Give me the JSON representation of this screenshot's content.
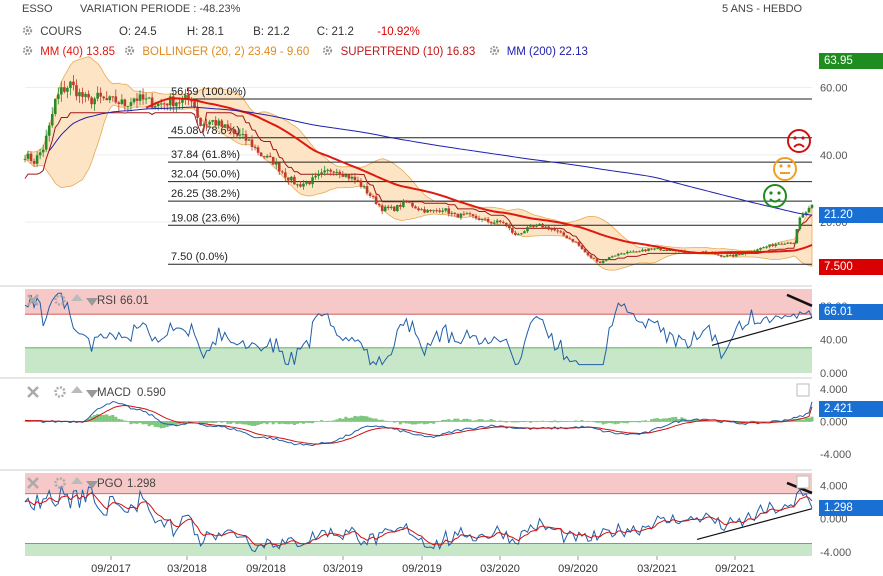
{
  "header": {
    "symbol": "ESSO",
    "variation": "VARIATION PERIODE : -48.23%",
    "period": "5 ANS - HEBDO"
  },
  "legend": {
    "cours_label": "COURS",
    "open": "O: 24.5",
    "high": "H: 28.1",
    "low": "B: 21.2",
    "close": "C: 21.2",
    "change": "-10.92%",
    "mm40": "MM (40) 13.85",
    "bollinger": "BOLLINGER (20, 2) 23.49 - 9.60",
    "supertrend": "SUPERTREND (10) 16.83",
    "mm200": "MM (200) 22.13"
  },
  "colors": {
    "candle_up": "#2a8a2a",
    "candle_down": "#c0392b",
    "mm40": "#e0190e",
    "bollinger": "#e8a040",
    "supertrend": "#a01818",
    "mm200": "#2020b0",
    "rsi": "#1f5fa8",
    "macd": "#1f5fa8",
    "signal": "#d01010",
    "hist": "#5cb85c",
    "overbought": "#f6c8c8",
    "oversold": "#c8e6c8",
    "tag_blue": "#1a6fd2",
    "tag_red": "#d80000",
    "tag_green": "#1f8c1f"
  },
  "price_tags": {
    "top": "63.95",
    "last": "21.20",
    "bottom": "7.500"
  },
  "fibonacci": [
    {
      "label": "56.59  (100.0%)",
      "value": 56.59
    },
    {
      "label": "45.08  (78.6%)",
      "value": 45.08
    },
    {
      "label": "37.84  (61.8%)",
      "value": 37.84
    },
    {
      "label": "32.04  (50.0%)",
      "value": 32.04
    },
    {
      "label": "26.25  (38.2%)",
      "value": 26.25
    },
    {
      "label": "19.08  (23.6%)",
      "value": 19.08
    },
    {
      "label": "7.50  (0.0%)",
      "value": 7.5
    }
  ],
  "indicators": {
    "rsi": {
      "label": "RSI",
      "value": "66.01",
      "tag": "66.01"
    },
    "macd": {
      "label": "MACD",
      "value": "0.590",
      "tag": "2.421"
    },
    "pgo": {
      "label": "PGO",
      "value": "1.298",
      "tag": "1.298"
    }
  },
  "chart_data": {
    "type": "candlestick",
    "x_ticks": [
      "09/2017",
      "03/2018",
      "09/2018",
      "03/2019",
      "09/2019",
      "03/2020",
      "09/2020",
      "03/2021",
      "09/2021"
    ],
    "price_axis": {
      "ticks": [
        20,
        40,
        60
      ],
      "tick_labels": [
        "20.00",
        "40.00",
        "60.00"
      ],
      "ylim": [
        4,
        67
      ]
    },
    "price_keypoints": [
      [
        0,
        40
      ],
      [
        3,
        38
      ],
      [
        6,
        42
      ],
      [
        8,
        48
      ],
      [
        10,
        56
      ],
      [
        12,
        59
      ],
      [
        15,
        61
      ],
      [
        18,
        58
      ],
      [
        21,
        56
      ],
      [
        24,
        57
      ],
      [
        27,
        56
      ],
      [
        30,
        56
      ],
      [
        33,
        55
      ],
      [
        36,
        57
      ],
      [
        40,
        56
      ],
      [
        44,
        55
      ],
      [
        48,
        56
      ],
      [
        52,
        56
      ],
      [
        55,
        57
      ],
      [
        58,
        49
      ],
      [
        62,
        50
      ],
      [
        66,
        48
      ],
      [
        70,
        46
      ],
      [
        74,
        44
      ],
      [
        78,
        40
      ],
      [
        82,
        38
      ],
      [
        86,
        34
      ],
      [
        90,
        31
      ],
      [
        94,
        32
      ],
      [
        98,
        34
      ],
      [
        102,
        36
      ],
      [
        106,
        34
      ],
      [
        110,
        32
      ],
      [
        114,
        28
      ],
      [
        118,
        24
      ],
      [
        122,
        24
      ],
      [
        126,
        26
      ],
      [
        130,
        24
      ],
      [
        134,
        23
      ],
      [
        138,
        24
      ],
      [
        142,
        22
      ],
      [
        146,
        22
      ],
      [
        150,
        21
      ],
      [
        154,
        20
      ],
      [
        158,
        20
      ],
      [
        162,
        16
      ],
      [
        166,
        18
      ],
      [
        170,
        19
      ],
      [
        174,
        18
      ],
      [
        178,
        16
      ],
      [
        182,
        14
      ],
      [
        186,
        10
      ],
      [
        190,
        8
      ],
      [
        194,
        10
      ],
      [
        198,
        11
      ],
      [
        202,
        11
      ],
      [
        206,
        12
      ],
      [
        210,
        12
      ],
      [
        214,
        12
      ],
      [
        218,
        11
      ],
      [
        222,
        11
      ],
      [
        226,
        11
      ],
      [
        230,
        10
      ],
      [
        234,
        10
      ],
      [
        238,
        11
      ],
      [
        242,
        12
      ],
      [
        246,
        13
      ],
      [
        250,
        14
      ],
      [
        254,
        14
      ],
      [
        256,
        21
      ],
      [
        258,
        23
      ],
      [
        260,
        24.5
      ]
    ],
    "rsi": {
      "ylim": [
        0,
        100
      ],
      "ticks": [
        0,
        40,
        80
      ],
      "tick_labels": [
        "0.000",
        "40.00",
        "80.00"
      ],
      "overbought": 70,
      "oversold": 30,
      "last": 66.01
    },
    "macd": {
      "ylim": [
        -6,
        5
      ],
      "ticks": [
        -4,
        0,
        4
      ],
      "tick_labels": [
        "-4.000",
        "0.000",
        "4.000"
      ],
      "last_macd": 2.421,
      "last_signal": 1.831,
      "hist_last": 0.59
    },
    "pgo": {
      "ylim": [
        -4.5,
        5.5
      ],
      "ticks": [
        -4,
        0,
        4
      ],
      "tick_labels": [
        "-4.000",
        "0.000",
        "4.000"
      ],
      "overbought": 3,
      "oversold": -3,
      "last": 1.298
    }
  }
}
